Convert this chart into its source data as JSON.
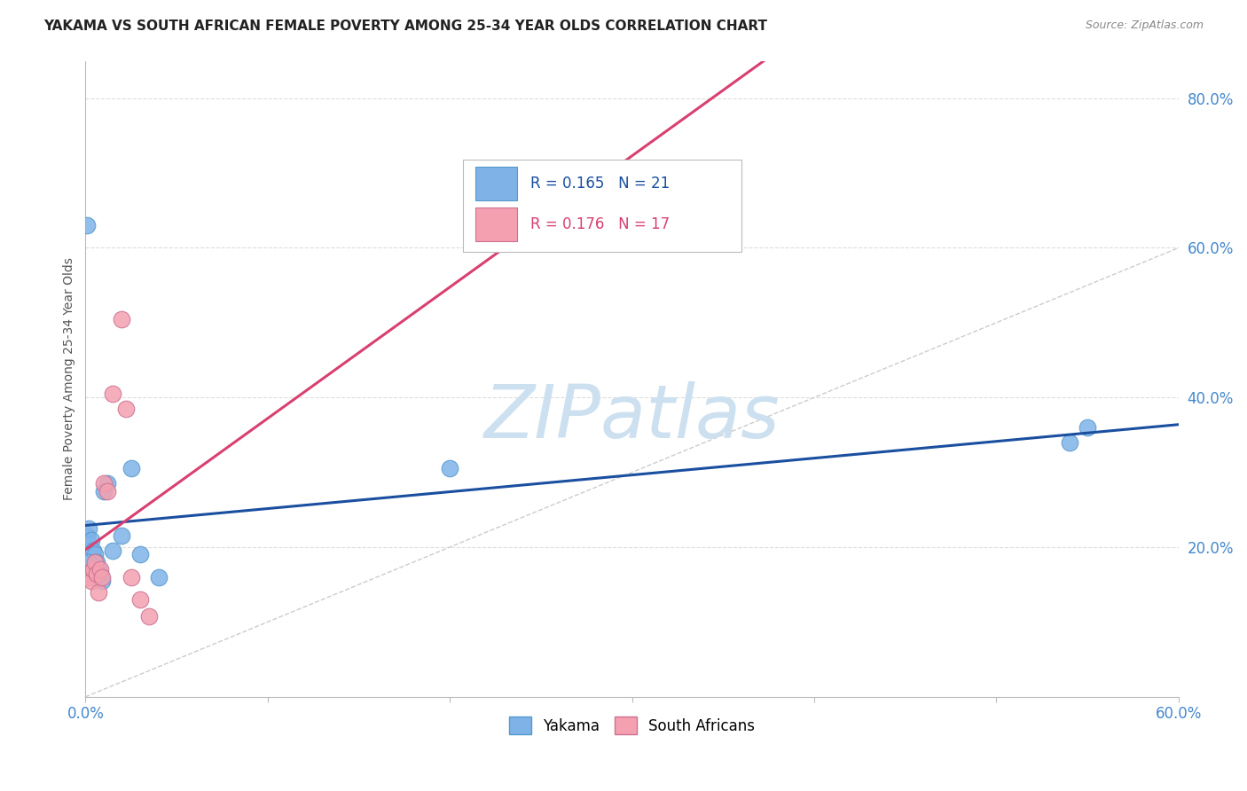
{
  "title": "YAKAMA VS SOUTH AFRICAN FEMALE POVERTY AMONG 25-34 YEAR OLDS CORRELATION CHART",
  "source": "Source: ZipAtlas.com",
  "ylabel": "Female Poverty Among 25-34 Year Olds",
  "xlim": [
    0.0,
    0.6
  ],
  "ylim": [
    0.0,
    0.85
  ],
  "xtick_positions": [
    0.0,
    0.1,
    0.2,
    0.3,
    0.4,
    0.5,
    0.6
  ],
  "xtick_labels": [
    "0.0%",
    "",
    "",
    "",
    "",
    "",
    "60.0%"
  ],
  "ytick_positions": [
    0.2,
    0.4,
    0.6,
    0.8
  ],
  "ytick_labels": [
    "20.0%",
    "40.0%",
    "60.0%",
    "80.0%"
  ],
  "blue_color": "#7fb3e8",
  "pink_color": "#f4a0b0",
  "blue_edge_color": "#5599cc",
  "pink_edge_color": "#cc7090",
  "blue_line_color": "#1a4fa0",
  "pink_line_color": "#d94070",
  "diagonal_color": "#cccccc",
  "grid_color": "#dddddd",
  "background_color": "#ffffff",
  "title_color": "#222222",
  "source_color": "#888888",
  "tick_label_color": "#4488cc",
  "ylabel_color": "#555555",
  "watermark_text": "ZIPatlas",
  "watermark_color": "#cce0f0",
  "legend_R1": "R = 0.165",
  "legend_N1": "N = 21",
  "legend_R2": "R = 0.176",
  "legend_N2": "N = 17",
  "legend_text_color1": "#1a4fa0",
  "legend_text_color2": "#d94070",
  "yakama_x": [
    0.001,
    0.002,
    0.003,
    0.004,
    0.005,
    0.006,
    0.007,
    0.008,
    0.009,
    0.01,
    0.012,
    0.015,
    0.02,
    0.025,
    0.03,
    0.04,
    0.2,
    0.001,
    0.002,
    0.54,
    0.55
  ],
  "yakama_y": [
    0.215,
    0.225,
    0.21,
    0.195,
    0.19,
    0.18,
    0.17,
    0.165,
    0.155,
    0.275,
    0.285,
    0.195,
    0.215,
    0.305,
    0.19,
    0.16,
    0.305,
    0.63,
    0.18,
    0.34,
    0.36
  ],
  "sa_x": [
    0.001,
    0.002,
    0.003,
    0.004,
    0.005,
    0.006,
    0.007,
    0.008,
    0.009,
    0.01,
    0.012,
    0.015,
    0.02,
    0.022,
    0.025,
    0.03,
    0.035
  ],
  "sa_y": [
    0.165,
    0.16,
    0.155,
    0.17,
    0.18,
    0.165,
    0.14,
    0.17,
    0.16,
    0.285,
    0.275,
    0.405,
    0.505,
    0.385,
    0.16,
    0.13,
    0.108
  ]
}
